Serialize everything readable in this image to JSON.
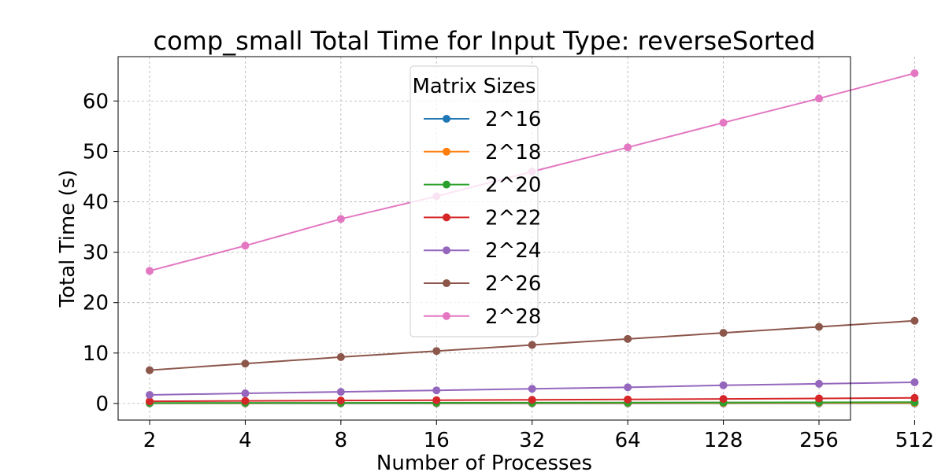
{
  "chart_data": {
    "type": "line",
    "title": "comp_small Total Time for Input Type: reverseSorted",
    "xlabel": "Number of Processes",
    "ylabel": "Total Time (s)",
    "x": [
      2,
      4,
      8,
      16,
      32,
      64,
      128,
      256,
      512
    ],
    "x_tick_labels": [
      "2",
      "4",
      "8",
      "16",
      "32",
      "64",
      "128",
      "256",
      "512"
    ],
    "x_scale": "log2",
    "ylim": [
      -3.3,
      68.8
    ],
    "y_ticks": [
      0,
      10,
      20,
      30,
      40,
      50,
      60
    ],
    "y_tick_labels": [
      "0",
      "10",
      "20",
      "30",
      "40",
      "50",
      "60"
    ],
    "grid": true,
    "legend": {
      "title": "Matrix Sizes",
      "placement": "upper-center"
    },
    "series": [
      {
        "name": "2^16",
        "color": "#1f77b4",
        "values": [
          0.02,
          0.02,
          0.02,
          0.02,
          0.02,
          0.02,
          0.03,
          0.03,
          0.03
        ]
      },
      {
        "name": "2^18",
        "color": "#ff7f0e",
        "values": [
          0.06,
          0.06,
          0.07,
          0.07,
          0.08,
          0.08,
          0.09,
          0.1,
          0.1
        ]
      },
      {
        "name": "2^20",
        "color": "#2ca02c",
        "values": [
          0.1,
          0.11,
          0.12,
          0.13,
          0.15,
          0.17,
          0.19,
          0.22,
          0.26
        ]
      },
      {
        "name": "2^22",
        "color": "#d62728",
        "values": [
          0.42,
          0.5,
          0.58,
          0.65,
          0.72,
          0.8,
          0.9,
          1.0,
          1.1
        ]
      },
      {
        "name": "2^24",
        "color": "#9467bd",
        "values": [
          1.7,
          2.0,
          2.3,
          2.6,
          2.9,
          3.2,
          3.6,
          3.9,
          4.2
        ]
      },
      {
        "name": "2^26",
        "color": "#8c564b",
        "values": [
          6.6,
          7.9,
          9.2,
          10.4,
          11.6,
          12.8,
          14.0,
          15.2,
          16.4
        ]
      },
      {
        "name": "2^28",
        "color": "#e377c2",
        "values": [
          26.3,
          31.3,
          36.6,
          41.1,
          46.0,
          50.8,
          55.7,
          60.5,
          65.5
        ]
      }
    ]
  }
}
